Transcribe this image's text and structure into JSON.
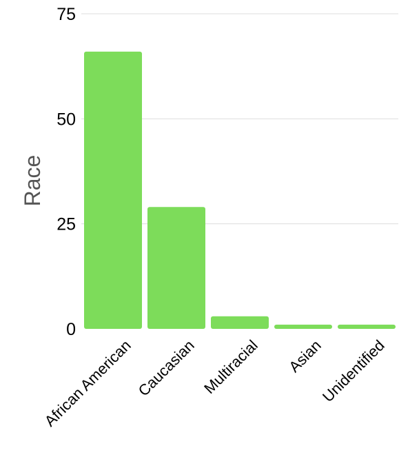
{
  "chart_data": {
    "type": "bar",
    "categories": [
      "African American",
      "Caucasian",
      "Multiracial",
      "Asian",
      "Unidentified"
    ],
    "values": [
      66,
      29,
      3,
      1,
      1
    ],
    "ylabel": "Race",
    "xlabel": "",
    "ylim": [
      0,
      75
    ],
    "yticks": [
      0,
      25,
      50,
      75
    ],
    "grid": true,
    "bar_color": "#7ddc5a"
  }
}
